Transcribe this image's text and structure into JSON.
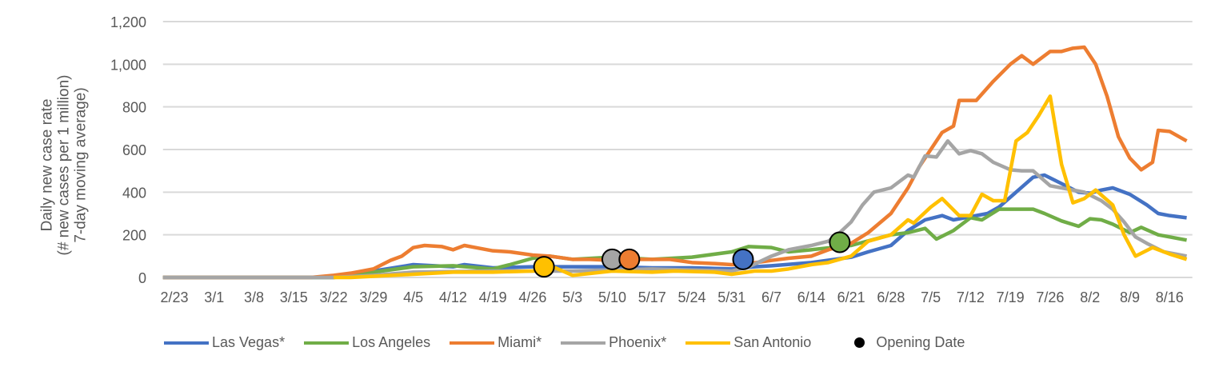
{
  "chart_data": {
    "type": "line",
    "title": "",
    "xlabel": "",
    "ylabel": "Daily new case rate\n(# new cases per 1 million)\n7-day moving average)",
    "ylabel_lines": [
      "Daily new case rate",
      "(# new cases per 1 million)",
      "7-day moving average)"
    ],
    "ylim": [
      0,
      1200
    ],
    "yticks": [
      "0",
      "200",
      "400",
      "600",
      "800",
      "1,000",
      "1,200"
    ],
    "ytick_values": [
      0,
      200,
      400,
      600,
      800,
      1000,
      1200
    ],
    "xlim": [
      "2/21",
      "8/20"
    ],
    "xticks": [
      "2/23",
      "3/1",
      "3/8",
      "3/15",
      "3/22",
      "3/29",
      "4/5",
      "4/12",
      "4/19",
      "4/26",
      "5/3",
      "5/10",
      "5/17",
      "5/24",
      "5/31",
      "6/7",
      "6/14",
      "6/21",
      "6/28",
      "7/5",
      "7/12",
      "7/19",
      "7/26",
      "8/2",
      "8/9",
      "8/16"
    ],
    "grid": true,
    "legend_position": "bottom",
    "series": [
      {
        "name": "Las Vegas*",
        "color": "#4472C4",
        "points": [
          [
            "2/21",
            0
          ],
          [
            "3/22",
            0
          ],
          [
            "3/29",
            30
          ],
          [
            "4/5",
            60
          ],
          [
            "4/12",
            50
          ],
          [
            "4/14",
            60
          ],
          [
            "4/19",
            45
          ],
          [
            "4/26",
            50
          ],
          [
            "5/3",
            50
          ],
          [
            "5/10",
            50
          ],
          [
            "5/17",
            45
          ],
          [
            "5/24",
            45
          ],
          [
            "5/31",
            40
          ],
          [
            "6/4",
            50
          ],
          [
            "6/7",
            55
          ],
          [
            "6/14",
            70
          ],
          [
            "6/21",
            95
          ],
          [
            "6/24",
            120
          ],
          [
            "6/28",
            150
          ],
          [
            "7/1",
            220
          ],
          [
            "7/4",
            270
          ],
          [
            "7/7",
            290
          ],
          [
            "7/9",
            270
          ],
          [
            "7/12",
            285
          ],
          [
            "7/15",
            300
          ],
          [
            "7/17",
            330
          ],
          [
            "7/20",
            400
          ],
          [
            "7/23",
            470
          ],
          [
            "7/25",
            480
          ],
          [
            "7/28",
            440
          ],
          [
            "7/31",
            400
          ],
          [
            "8/2",
            395
          ],
          [
            "8/4",
            410
          ],
          [
            "8/6",
            420
          ],
          [
            "8/9",
            390
          ],
          [
            "8/12",
            340
          ],
          [
            "8/14",
            300
          ],
          [
            "8/16",
            290
          ],
          [
            "8/19",
            280
          ]
        ]
      },
      {
        "name": "Los Angeles",
        "color": "#70AD47",
        "points": [
          [
            "2/21",
            0
          ],
          [
            "3/22",
            0
          ],
          [
            "3/29",
            25
          ],
          [
            "4/5",
            50
          ],
          [
            "4/12",
            55
          ],
          [
            "4/19",
            40
          ],
          [
            "4/22",
            60
          ],
          [
            "4/26",
            90
          ],
          [
            "4/29",
            100
          ],
          [
            "5/3",
            85
          ],
          [
            "5/10",
            95
          ],
          [
            "5/17",
            85
          ],
          [
            "5/24",
            95
          ],
          [
            "5/31",
            120
          ],
          [
            "6/3",
            145
          ],
          [
            "6/7",
            140
          ],
          [
            "6/10",
            120
          ],
          [
            "6/14",
            130
          ],
          [
            "6/21",
            150
          ],
          [
            "6/28",
            200
          ],
          [
            "7/1",
            210
          ],
          [
            "7/4",
            230
          ],
          [
            "7/6",
            180
          ],
          [
            "7/9",
            220
          ],
          [
            "7/12",
            280
          ],
          [
            "7/14",
            270
          ],
          [
            "7/17",
            320
          ],
          [
            "7/23",
            320
          ],
          [
            "7/25",
            300
          ],
          [
            "7/28",
            265
          ],
          [
            "7/31",
            240
          ],
          [
            "8/2",
            275
          ],
          [
            "8/4",
            270
          ],
          [
            "8/6",
            250
          ],
          [
            "8/9",
            210
          ],
          [
            "8/11",
            235
          ],
          [
            "8/14",
            200
          ],
          [
            "8/16",
            190
          ],
          [
            "8/19",
            175
          ]
        ]
      },
      {
        "name": "Miami*",
        "color": "#ED7D31",
        "points": [
          [
            "2/21",
            0
          ],
          [
            "3/18",
            0
          ],
          [
            "3/22",
            10
          ],
          [
            "3/25",
            20
          ],
          [
            "3/29",
            40
          ],
          [
            "4/1",
            80
          ],
          [
            "4/3",
            100
          ],
          [
            "4/5",
            140
          ],
          [
            "4/7",
            150
          ],
          [
            "4/10",
            145
          ],
          [
            "4/12",
            130
          ],
          [
            "4/14",
            150
          ],
          [
            "4/16",
            140
          ],
          [
            "4/19",
            125
          ],
          [
            "4/22",
            120
          ],
          [
            "4/26",
            105
          ],
          [
            "4/29",
            100
          ],
          [
            "5/3",
            85
          ],
          [
            "5/6",
            85
          ],
          [
            "5/10",
            80
          ],
          [
            "5/13",
            85
          ],
          [
            "5/17",
            85
          ],
          [
            "5/20",
            85
          ],
          [
            "5/24",
            70
          ],
          [
            "5/28",
            65
          ],
          [
            "5/31",
            60
          ],
          [
            "6/3",
            65
          ],
          [
            "6/7",
            80
          ],
          [
            "6/10",
            90
          ],
          [
            "6/14",
            100
          ],
          [
            "6/17",
            130
          ],
          [
            "6/21",
            160
          ],
          [
            "6/24",
            210
          ],
          [
            "6/28",
            300
          ],
          [
            "7/1",
            420
          ],
          [
            "7/3",
            520
          ],
          [
            "7/5",
            600
          ],
          [
            "7/7",
            680
          ],
          [
            "7/9",
            710
          ],
          [
            "7/10",
            830
          ],
          [
            "7/13",
            830
          ],
          [
            "7/16",
            920
          ],
          [
            "7/19",
            1000
          ],
          [
            "7/21",
            1040
          ],
          [
            "7/23",
            1000
          ],
          [
            "7/26",
            1060
          ],
          [
            "7/28",
            1060
          ],
          [
            "7/30",
            1075
          ],
          [
            "8/1",
            1080
          ],
          [
            "8/3",
            1000
          ],
          [
            "8/5",
            850
          ],
          [
            "8/7",
            660
          ],
          [
            "8/9",
            560
          ],
          [
            "8/11",
            505
          ],
          [
            "8/13",
            540
          ],
          [
            "8/14",
            690
          ],
          [
            "8/16",
            685
          ],
          [
            "8/19",
            640
          ]
        ]
      },
      {
        "name": "Phoenix*",
        "color": "#A5A5A5",
        "points": [
          [
            "2/21",
            0
          ],
          [
            "3/22",
            0
          ],
          [
            "3/29",
            10
          ],
          [
            "4/5",
            25
          ],
          [
            "4/19",
            30
          ],
          [
            "5/3",
            30
          ],
          [
            "5/17",
            40
          ],
          [
            "5/31",
            30
          ],
          [
            "6/3",
            50
          ],
          [
            "6/7",
            100
          ],
          [
            "6/10",
            130
          ],
          [
            "6/14",
            150
          ],
          [
            "6/17",
            170
          ],
          [
            "6/19",
            210
          ],
          [
            "6/21",
            260
          ],
          [
            "6/23",
            340
          ],
          [
            "6/25",
            400
          ],
          [
            "6/28",
            420
          ],
          [
            "7/1",
            480
          ],
          [
            "7/2",
            470
          ],
          [
            "7/4",
            570
          ],
          [
            "7/6",
            565
          ],
          [
            "7/8",
            640
          ],
          [
            "7/10",
            580
          ],
          [
            "7/12",
            595
          ],
          [
            "7/14",
            580
          ],
          [
            "7/16",
            540
          ],
          [
            "7/19",
            505
          ],
          [
            "7/21",
            500
          ],
          [
            "7/23",
            500
          ],
          [
            "7/26",
            430
          ],
          [
            "7/28",
            420
          ],
          [
            "8/1",
            400
          ],
          [
            "8/4",
            360
          ],
          [
            "8/6",
            320
          ],
          [
            "8/8",
            260
          ],
          [
            "8/10",
            190
          ],
          [
            "8/12",
            160
          ],
          [
            "8/15",
            120
          ],
          [
            "8/19",
            100
          ]
        ]
      },
      {
        "name": "San Antonio",
        "color": "#FFC000",
        "points": [
          [
            "3/22",
            0
          ],
          [
            "3/25",
            0
          ],
          [
            "4/5",
            15
          ],
          [
            "4/12",
            25
          ],
          [
            "4/19",
            25
          ],
          [
            "4/26",
            30
          ],
          [
            "4/30",
            45
          ],
          [
            "5/3",
            10
          ],
          [
            "5/10",
            30
          ],
          [
            "5/17",
            25
          ],
          [
            "5/21",
            30
          ],
          [
            "5/28",
            25
          ],
          [
            "5/31",
            15
          ],
          [
            "6/4",
            30
          ],
          [
            "6/7",
            30
          ],
          [
            "6/10",
            40
          ],
          [
            "6/14",
            60
          ],
          [
            "6/17",
            70
          ],
          [
            "6/21",
            100
          ],
          [
            "6/24",
            170
          ],
          [
            "6/28",
            200
          ],
          [
            "7/1",
            270
          ],
          [
            "7/2",
            255
          ],
          [
            "7/5",
            330
          ],
          [
            "7/7",
            370
          ],
          [
            "7/10",
            290
          ],
          [
            "7/12",
            290
          ],
          [
            "7/14",
            390
          ],
          [
            "7/16",
            360
          ],
          [
            "7/18",
            360
          ],
          [
            "7/20",
            640
          ],
          [
            "7/22",
            680
          ],
          [
            "7/24",
            760
          ],
          [
            "7/26",
            850
          ],
          [
            "7/28",
            530
          ],
          [
            "7/30",
            350
          ],
          [
            "8/1",
            370
          ],
          [
            "8/3",
            410
          ],
          [
            "8/6",
            340
          ],
          [
            "8/8",
            200
          ],
          [
            "8/10",
            100
          ],
          [
            "8/13",
            140
          ],
          [
            "8/16",
            110
          ],
          [
            "8/19",
            85
          ]
        ]
      }
    ],
    "opening_dates": {
      "name": "Opening Date",
      "markers": [
        {
          "series": "San Antonio",
          "date": "4/28",
          "value": 50,
          "color": "#FFC000"
        },
        {
          "series": "Phoenix*",
          "date": "5/10",
          "value": 85,
          "color": "#A5A5A5"
        },
        {
          "series": "Miami*",
          "date": "5/13",
          "value": 85,
          "color": "#ED7D31"
        },
        {
          "series": "Las Vegas*",
          "date": "6/2",
          "value": 85,
          "color": "#4472C4"
        },
        {
          "series": "Los Angeles",
          "date": "6/19",
          "value": 165,
          "color": "#70AD47"
        }
      ]
    }
  }
}
